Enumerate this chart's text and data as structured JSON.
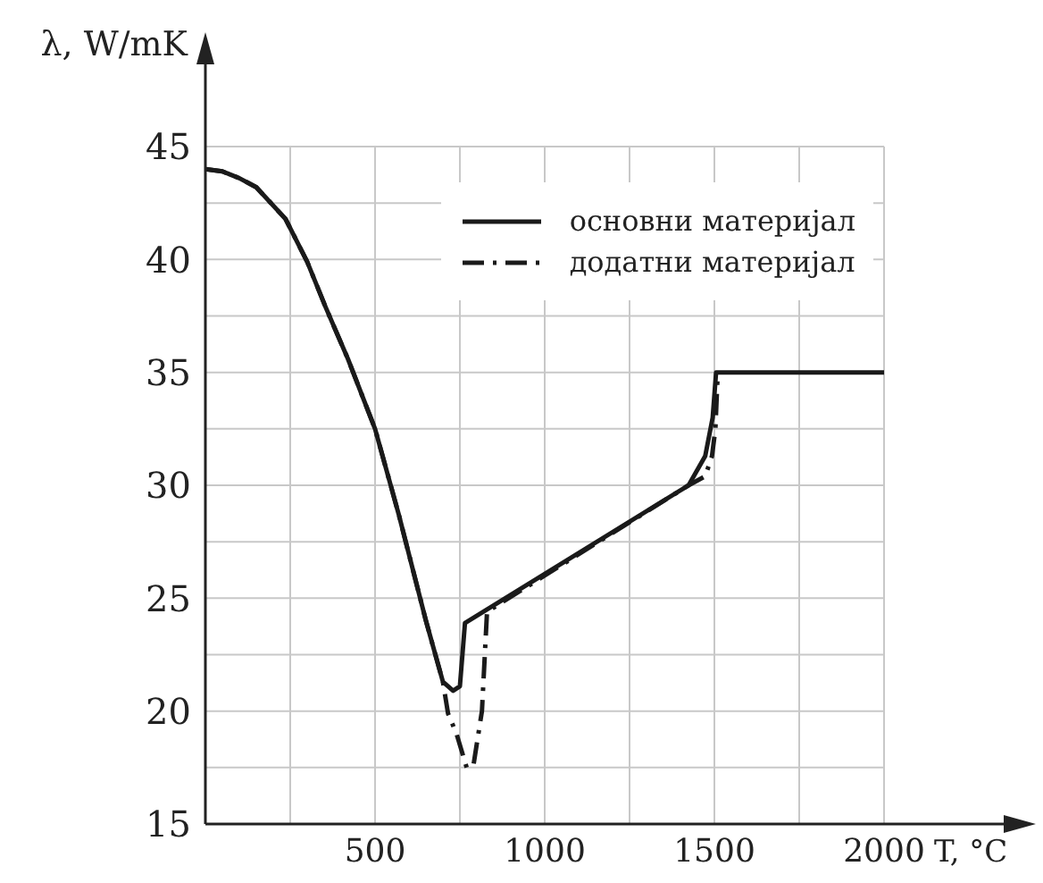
{
  "chart_data": {
    "type": "line",
    "xlabel": "T, °C",
    "ylabel": "λ, W/mK",
    "xlim": [
      0,
      2000
    ],
    "ylim": [
      15,
      45
    ],
    "xticks": [
      {
        "value": 250,
        "label": null
      },
      500,
      {
        "value": 750,
        "label": null
      },
      1000,
      {
        "value": 1250,
        "label": null
      },
      1500,
      {
        "value": 1750,
        "label": null
      },
      2000
    ],
    "yticks": [
      15,
      {
        "value": 17.5,
        "label": null
      },
      20,
      {
        "value": 22.5,
        "label": null
      },
      25,
      {
        "value": 27.5,
        "label": null
      },
      30,
      {
        "value": 32.5,
        "label": null
      },
      35,
      {
        "value": 37.5,
        "label": null
      },
      40,
      {
        "value": 42.5,
        "label": null
      },
      45
    ],
    "grid": true,
    "legend": "top right",
    "marker": "none",
    "series": [
      {
        "name": "основни материјал",
        "color": "#1a1a1a",
        "line_style": "solid",
        "x": [
          0,
          50,
          100,
          150,
          236,
          300,
          354,
          420,
          500,
          570,
          650,
          700,
          730,
          750,
          765,
          1424,
          1473,
          1495,
          1505,
          2000
        ],
        "values": [
          44,
          43.9,
          43.6,
          43.2,
          41.8,
          39.9,
          37.9,
          35.6,
          32.5,
          28.7,
          24,
          21.3,
          20.9,
          21.1,
          23.9,
          30,
          31.3,
          33,
          35,
          35
        ]
      },
      {
        "name": "додатни материјал",
        "color": "#1a1a1a",
        "line_style": "dashed",
        "x": [
          0,
          50,
          100,
          150,
          236,
          300,
          354,
          420,
          500,
          570,
          650,
          700,
          715,
          740,
          770,
          790,
          815,
          830,
          1424,
          1473,
          1493,
          1503,
          1510
        ],
        "values": [
          44,
          43.9,
          43.6,
          43.2,
          41.8,
          39.9,
          37.9,
          35.6,
          32.5,
          28.7,
          24,
          21.3,
          19.9,
          19,
          17.5,
          17.6,
          20,
          24.4,
          30,
          30.4,
          31.3,
          32.5,
          35
        ]
      }
    ]
  }
}
